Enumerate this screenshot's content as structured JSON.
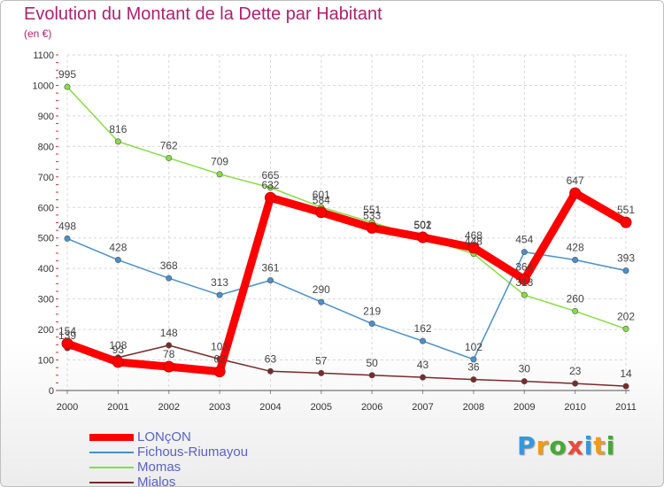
{
  "chart_data": {
    "type": "line",
    "title": "Evolution du Montant de la Dette par Habitant",
    "subtitle": "(en €)",
    "xlabel": "",
    "ylabel": "",
    "x": [
      "2000",
      "2001",
      "2002",
      "2003",
      "2004",
      "2005",
      "2006",
      "2007",
      "2008",
      "2009",
      "2010",
      "2011"
    ],
    "ylim": [
      0,
      1100
    ],
    "yticks": [
      "0",
      "100",
      "200",
      "300",
      "400",
      "500",
      "600",
      "700",
      "800",
      "900",
      "1000",
      "1100"
    ],
    "grid": true,
    "legend_position": "bottom-left",
    "series": [
      {
        "name": "LONçON",
        "color": "#ff0000",
        "values": [
          154,
          93,
          78,
          62,
          632,
          584,
          533,
          502,
          468,
          364,
          647,
          551
        ]
      },
      {
        "name": "Fichous-Riumayou",
        "color": "#4a90c8",
        "values": [
          498,
          428,
          368,
          313,
          361,
          290,
          219,
          162,
          102,
          454,
          428,
          393
        ]
      },
      {
        "name": "Momas",
        "color": "#88dd44",
        "values": [
          995,
          816,
          762,
          709,
          665,
          601,
          551,
          501,
          448,
          313,
          260,
          202
        ]
      },
      {
        "name": "Mialos",
        "color": "#7a2a2a",
        "values": [
          139,
          108,
          148,
          103,
          63,
          57,
          50,
          43,
          36,
          30,
          23,
          14
        ]
      }
    ]
  },
  "logo": {
    "letters": [
      "P",
      "r",
      "o",
      "x",
      "i",
      "t",
      "i"
    ],
    "colors": [
      "#3399dd",
      "#f39c12",
      "#44aa33",
      "#e74c3c",
      "#3399dd",
      "#f39c12",
      "#44aa33"
    ]
  }
}
